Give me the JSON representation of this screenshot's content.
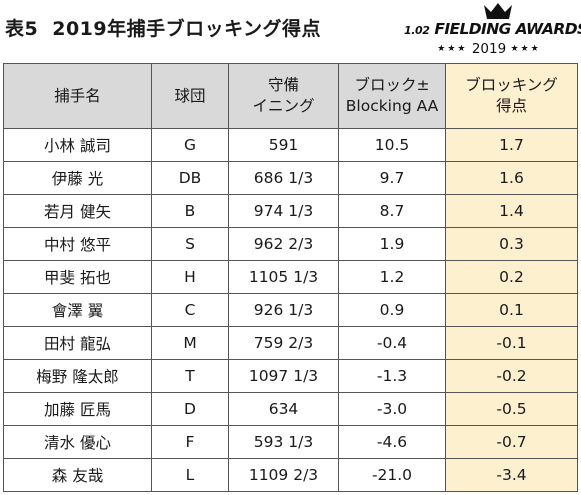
{
  "title": {
    "label": "表5",
    "text": "2019年捕手ブロッキング得点"
  },
  "logo": {
    "brand_number": "1.02",
    "brand_text": "FIELDING AWARDS",
    "stars_left": "★★★",
    "year": "2019",
    "stars_right": "★★★"
  },
  "table": {
    "headers": [
      {
        "line1": "捕手名",
        "line2": ""
      },
      {
        "line1": "球団",
        "line2": ""
      },
      {
        "line1": "守備",
        "line2": "イニング"
      },
      {
        "line1": "ブロック±",
        "line2": "Blocking AA"
      },
      {
        "line1": "ブロッキング",
        "line2": "得点"
      }
    ],
    "rows": [
      {
        "name": "小林 誠司",
        "team": "G",
        "innings": "591",
        "blocking_aa": "10.5",
        "score": "1.7"
      },
      {
        "name": "伊藤 光",
        "team": "DB",
        "innings": "686 1/3",
        "blocking_aa": "9.7",
        "score": "1.6"
      },
      {
        "name": "若月 健矢",
        "team": "B",
        "innings": "974 1/3",
        "blocking_aa": "8.7",
        "score": "1.4"
      },
      {
        "name": "中村 悠平",
        "team": "S",
        "innings": "962 2/3",
        "blocking_aa": "1.9",
        "score": "0.3"
      },
      {
        "name": "甲斐 拓也",
        "team": "H",
        "innings": "1105 1/3",
        "blocking_aa": "1.2",
        "score": "0.2"
      },
      {
        "name": "會澤 翼",
        "team": "C",
        "innings": "926 1/3",
        "blocking_aa": "0.9",
        "score": "0.1"
      },
      {
        "name": "田村 龍弘",
        "team": "M",
        "innings": "759 2/3",
        "blocking_aa": "-0.4",
        "score": "-0.1"
      },
      {
        "name": "梅野 隆太郎",
        "team": "T",
        "innings": "1097 1/3",
        "blocking_aa": "-1.3",
        "score": "-0.2"
      },
      {
        "name": "加藤 匠馬",
        "team": "D",
        "innings": "634",
        "blocking_aa": "-3.0",
        "score": "-0.5"
      },
      {
        "name": "清水 優心",
        "team": "F",
        "innings": "593 1/3",
        "blocking_aa": "-4.6",
        "score": "-0.7"
      },
      {
        "name": "森 友哉",
        "team": "L",
        "innings": "1109 2/3",
        "blocking_aa": "-21.0",
        "score": "-3.4"
      }
    ]
  },
  "colors": {
    "header_bg": "#d9d9d9",
    "score_bg": "#fdf0cf",
    "border": "#555555"
  },
  "icons": {
    "logo_crown": "crown-icon"
  }
}
